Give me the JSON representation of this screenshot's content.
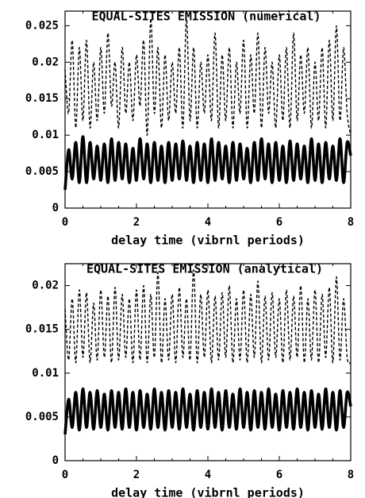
{
  "chart_data": [
    {
      "type": "line",
      "title": "EQUAL-SITES EMISSION (numerical)",
      "xlabel": "delay time (vibrnl periods)",
      "ylabel": "",
      "xlim": [
        0,
        8
      ],
      "ylim": [
        0,
        0.027
      ],
      "x_ticks": [
        0,
        2,
        4,
        6,
        8
      ],
      "x_tick_labels": [
        "0",
        "2",
        "4",
        "6",
        "8"
      ],
      "y_ticks": [
        0,
        0.005,
        0.01,
        0.015,
        0.02,
        0.025
      ],
      "y_tick_labels": [
        "0",
        "0.005",
        "0.01",
        "0.015",
        "0.02",
        "0.025"
      ],
      "grid": false,
      "series": [
        {
          "style": "dashed",
          "x": [
            0,
            0.1,
            0.2,
            0.3,
            0.4,
            0.5,
            0.6,
            0.7,
            0.8,
            0.9,
            1,
            1.1,
            1.2,
            1.3,
            1.4,
            1.5,
            1.6,
            1.7,
            1.8,
            1.9,
            2,
            2.1,
            2.2,
            2.3,
            2.4,
            2.5,
            2.6,
            2.7,
            2.8,
            2.9,
            3,
            3.1,
            3.2,
            3.3,
            3.4,
            3.5,
            3.6,
            3.7,
            3.8,
            3.9,
            4,
            4.1,
            4.2,
            4.3,
            4.4,
            4.5,
            4.6,
            4.7,
            4.8,
            4.9,
            5,
            5.1,
            5.2,
            5.3,
            5.4,
            5.5,
            5.6,
            5.7,
            5.8,
            5.9,
            6,
            6.1,
            6.2,
            6.3,
            6.4,
            6.5,
            6.6,
            6.7,
            6.8,
            6.9,
            7,
            7.1,
            7.2,
            7.3,
            7.4,
            7.5,
            7.6,
            7.7,
            7.8,
            7.9,
            8
          ],
          "y": [
            0.019,
            0.013,
            0.023,
            0.011,
            0.022,
            0.012,
            0.023,
            0.011,
            0.02,
            0.012,
            0.022,
            0.013,
            0.024,
            0.014,
            0.02,
            0.011,
            0.022,
            0.013,
            0.02,
            0.012,
            0.021,
            0.014,
            0.023,
            0.01,
            0.026,
            0.013,
            0.022,
            0.011,
            0.021,
            0.012,
            0.02,
            0.013,
            0.022,
            0.011,
            0.026,
            0.012,
            0.022,
            0.011,
            0.02,
            0.013,
            0.021,
            0.012,
            0.024,
            0.011,
            0.021,
            0.012,
            0.022,
            0.011,
            0.02,
            0.013,
            0.023,
            0.011,
            0.021,
            0.013,
            0.024,
            0.011,
            0.022,
            0.013,
            0.02,
            0.011,
            0.021,
            0.012,
            0.022,
            0.011,
            0.024,
            0.012,
            0.021,
            0.013,
            0.022,
            0.011,
            0.02,
            0.012,
            0.022,
            0.011,
            0.023,
            0.012,
            0.025,
            0.012,
            0.022,
            0.013,
            0.01
          ]
        },
        {
          "style": "solid",
          "x": [
            0,
            0.1,
            0.2,
            0.3,
            0.4,
            0.5,
            0.6,
            0.7,
            0.8,
            0.9,
            1,
            1.1,
            1.2,
            1.3,
            1.4,
            1.5,
            1.6,
            1.7,
            1.8,
            1.9,
            2,
            2.1,
            2.2,
            2.3,
            2.4,
            2.5,
            2.6,
            2.7,
            2.8,
            2.9,
            3,
            3.1,
            3.2,
            3.3,
            3.4,
            3.5,
            3.6,
            3.7,
            3.8,
            3.9,
            4,
            4.1,
            4.2,
            4.3,
            4.4,
            4.5,
            4.6,
            4.7,
            4.8,
            4.9,
            5,
            5.1,
            5.2,
            5.3,
            5.4,
            5.5,
            5.6,
            5.7,
            5.8,
            5.9,
            6,
            6.1,
            6.2,
            6.3,
            6.4,
            6.5,
            6.6,
            6.7,
            6.8,
            6.9,
            7,
            7.1,
            7.2,
            7.3,
            7.4,
            7.5,
            7.6,
            7.7,
            7.8,
            7.9,
            8
          ],
          "y": [
            0.0025,
            0.008,
            0.004,
            0.009,
            0.0035,
            0.0098,
            0.0035,
            0.009,
            0.004,
            0.0085,
            0.0038,
            0.0088,
            0.0035,
            0.0095,
            0.0038,
            0.009,
            0.004,
            0.0088,
            0.0035,
            0.0082,
            0.0038,
            0.0095,
            0.004,
            0.0088,
            0.0035,
            0.009,
            0.0038,
            0.0085,
            0.0035,
            0.009,
            0.0038,
            0.0088,
            0.004,
            0.0092,
            0.0038,
            0.0085,
            0.0035,
            0.009,
            0.0038,
            0.0088,
            0.0035,
            0.0095,
            0.0038,
            0.009,
            0.004,
            0.0085,
            0.0035,
            0.009,
            0.0038,
            0.0088,
            0.004,
            0.0082,
            0.0035,
            0.009,
            0.0038,
            0.0095,
            0.004,
            0.0088,
            0.0035,
            0.009,
            0.0038,
            0.0085,
            0.0035,
            0.0092,
            0.0038,
            0.0088,
            0.004,
            0.0085,
            0.0035,
            0.0095,
            0.0038,
            0.0088,
            0.0035,
            0.009,
            0.004,
            0.0085,
            0.0038,
            0.0095,
            0.0035,
            0.009,
            0.0072
          ]
        }
      ]
    },
    {
      "type": "line",
      "title": "EQUAL-SITES EMISSION (analytical)",
      "xlabel": "delay time (vibrnl periods)",
      "ylabel": "",
      "xlim": [
        0,
        8
      ],
      "ylim": [
        0,
        0.0225
      ],
      "x_ticks": [
        0,
        2,
        4,
        6,
        8
      ],
      "x_tick_labels": [
        "0",
        "2",
        "4",
        "6",
        "8"
      ],
      "y_ticks": [
        0,
        0.005,
        0.01,
        0.015,
        0.02
      ],
      "y_tick_labels": [
        "0",
        "0.005",
        "0.01",
        "0.015",
        "0.02"
      ],
      "grid": false,
      "series": [
        {
          "style": "dashed",
          "x": [
            0,
            0.1,
            0.2,
            0.3,
            0.4,
            0.5,
            0.6,
            0.7,
            0.8,
            0.9,
            1,
            1.1,
            1.2,
            1.3,
            1.4,
            1.5,
            1.6,
            1.7,
            1.8,
            1.9,
            2,
            2.1,
            2.2,
            2.3,
            2.4,
            2.5,
            2.6,
            2.7,
            2.8,
            2.9,
            3,
            3.1,
            3.2,
            3.3,
            3.4,
            3.5,
            3.6,
            3.7,
            3.8,
            3.9,
            4,
            4.1,
            4.2,
            4.3,
            4.4,
            4.5,
            4.6,
            4.7,
            4.8,
            4.9,
            5,
            5.1,
            5.2,
            5.3,
            5.4,
            5.5,
            5.6,
            5.7,
            5.8,
            5.9,
            6,
            6.1,
            6.2,
            6.3,
            6.4,
            6.5,
            6.6,
            6.7,
            6.8,
            6.9,
            7,
            7.1,
            7.2,
            7.3,
            7.4,
            7.5,
            7.6,
            7.7,
            7.8,
            7.9,
            8
          ],
          "y": [
            0.0173,
            0.0115,
            0.0185,
            0.0112,
            0.0195,
            0.0118,
            0.0192,
            0.0112,
            0.018,
            0.0115,
            0.0195,
            0.0118,
            0.0188,
            0.0112,
            0.0198,
            0.0115,
            0.019,
            0.0118,
            0.0185,
            0.0112,
            0.0195,
            0.0115,
            0.02,
            0.0112,
            0.019,
            0.0118,
            0.0215,
            0.0112,
            0.0185,
            0.0115,
            0.019,
            0.0112,
            0.0198,
            0.0118,
            0.0185,
            0.0115,
            0.0218,
            0.0112,
            0.019,
            0.0118,
            0.0195,
            0.0112,
            0.0188,
            0.0115,
            0.0192,
            0.0118,
            0.02,
            0.0112,
            0.0185,
            0.0115,
            0.0195,
            0.0112,
            0.019,
            0.0118,
            0.0205,
            0.0112,
            0.0188,
            0.0115,
            0.0192,
            0.0118,
            0.0185,
            0.0112,
            0.0195,
            0.0115,
            0.0188,
            0.0118,
            0.02,
            0.0112,
            0.0185,
            0.0115,
            0.0195,
            0.0112,
            0.019,
            0.0118,
            0.0198,
            0.0112,
            0.021,
            0.0115,
            0.0185,
            0.0118,
            0.0112
          ]
        },
        {
          "style": "solid",
          "x": [
            0,
            0.1,
            0.2,
            0.3,
            0.4,
            0.5,
            0.6,
            0.7,
            0.8,
            0.9,
            1,
            1.1,
            1.2,
            1.3,
            1.4,
            1.5,
            1.6,
            1.7,
            1.8,
            1.9,
            2,
            2.1,
            2.2,
            2.3,
            2.4,
            2.5,
            2.6,
            2.7,
            2.8,
            2.9,
            3,
            3.1,
            3.2,
            3.3,
            3.4,
            3.5,
            3.6,
            3.7,
            3.8,
            3.9,
            4,
            4.1,
            4.2,
            4.3,
            4.4,
            4.5,
            4.6,
            4.7,
            4.8,
            4.9,
            5,
            5.1,
            5.2,
            5.3,
            5.4,
            5.5,
            5.6,
            5.7,
            5.8,
            5.9,
            6,
            6.1,
            6.2,
            6.3,
            6.4,
            6.5,
            6.6,
            6.7,
            6.8,
            6.9,
            7,
            7.1,
            7.2,
            7.3,
            7.4,
            7.5,
            7.6,
            7.7,
            7.8,
            7.9,
            8
          ],
          "y": [
            0.003,
            0.007,
            0.0038,
            0.0078,
            0.0035,
            0.0082,
            0.0038,
            0.0078,
            0.0036,
            0.008,
            0.0038,
            0.0076,
            0.0035,
            0.008,
            0.0038,
            0.0078,
            0.0036,
            0.0082,
            0.0038,
            0.0078,
            0.0035,
            0.008,
            0.0038,
            0.0076,
            0.0036,
            0.0082,
            0.0038,
            0.0078,
            0.0035,
            0.008,
            0.0038,
            0.0078,
            0.0036,
            0.0082,
            0.0038,
            0.0076,
            0.0035,
            0.008,
            0.0038,
            0.0078,
            0.0036,
            0.0082,
            0.0038,
            0.0078,
            0.0035,
            0.008,
            0.0038,
            0.0076,
            0.0036,
            0.0082,
            0.0038,
            0.0078,
            0.0035,
            0.008,
            0.0038,
            0.0078,
            0.0036,
            0.0082,
            0.0038,
            0.0076,
            0.0035,
            0.008,
            0.0038,
            0.0078,
            0.0036,
            0.0082,
            0.0038,
            0.0078,
            0.0035,
            0.008,
            0.0038,
            0.0076,
            0.0036,
            0.0082,
            0.0038,
            0.0078,
            0.0035,
            0.008,
            0.0038,
            0.0078,
            0.0062
          ]
        }
      ]
    }
  ]
}
